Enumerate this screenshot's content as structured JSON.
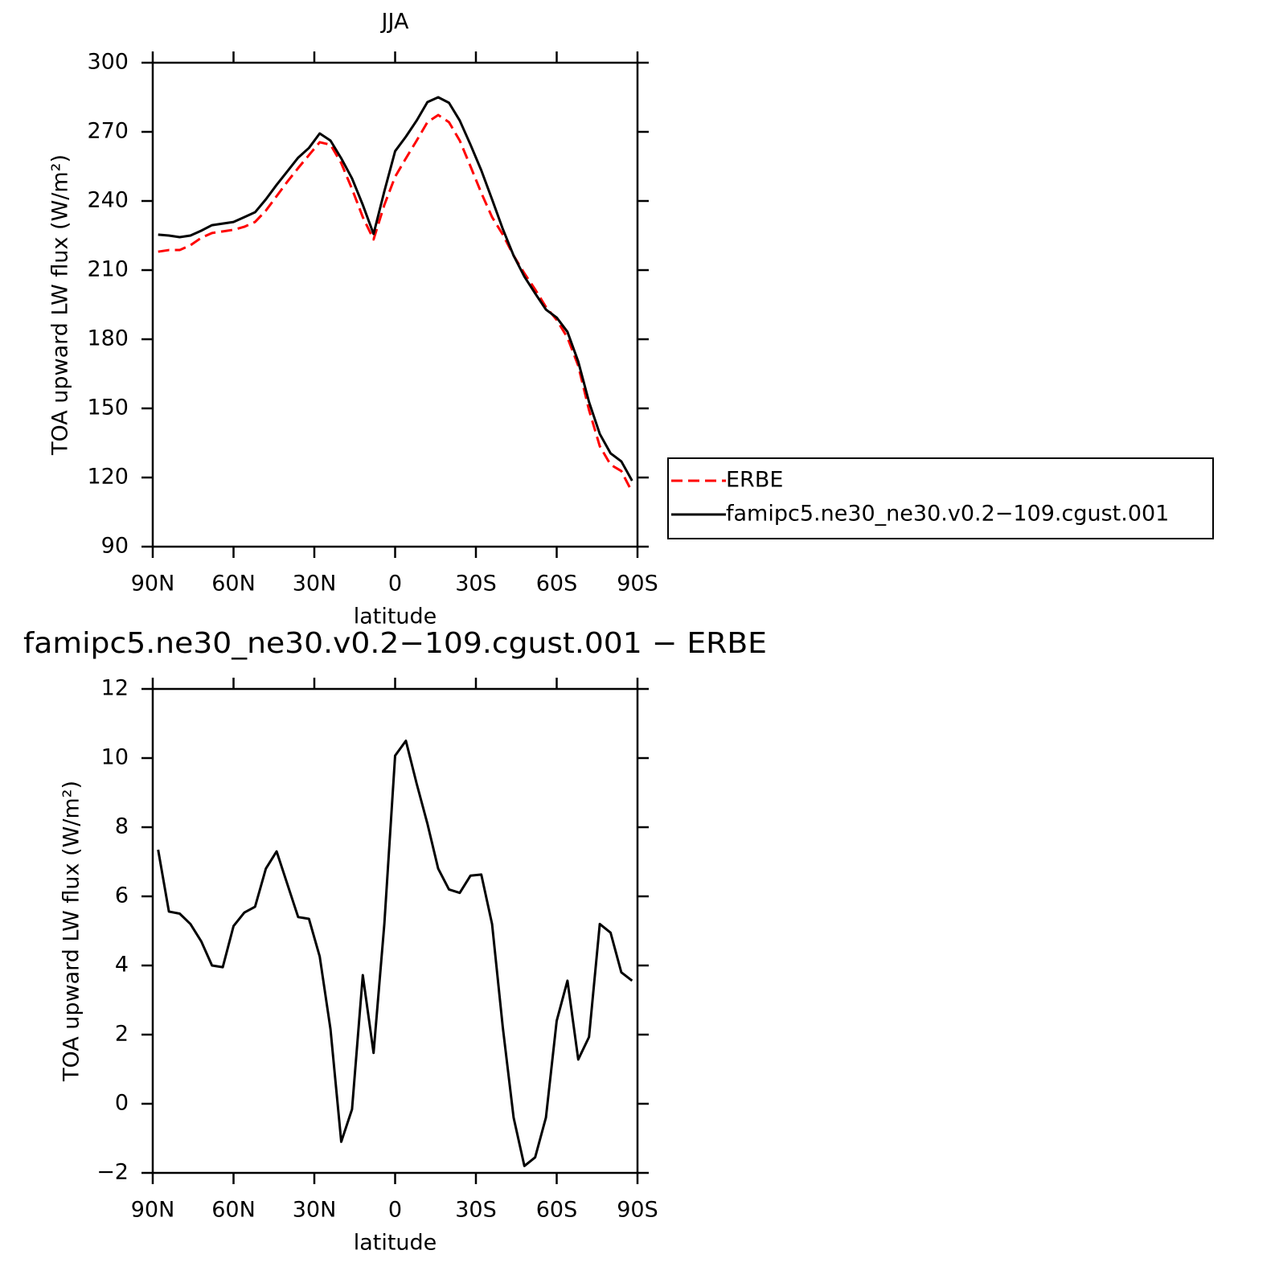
{
  "chart_data": [
    {
      "type": "line",
      "title": "JJA",
      "xlabel": "latitude",
      "ylabel": "TOA upward LW flux (W/m²)",
      "x": [
        88,
        84,
        80,
        76,
        72,
        68,
        64,
        60,
        56,
        52,
        48,
        44,
        40,
        36,
        32,
        28,
        24,
        20,
        16,
        12,
        8,
        4,
        0,
        -4,
        -8,
        -12,
        -16,
        -20,
        -24,
        -28,
        -32,
        -36,
        -40,
        -44,
        -48,
        -52,
        -56,
        -60,
        -64,
        -68,
        -72,
        -76,
        -80,
        -84,
        -88
      ],
      "xlim": [
        90,
        -90
      ],
      "xticks": [
        {
          "value": 90,
          "label": "90N"
        },
        {
          "value": 60,
          "label": "60N"
        },
        {
          "value": 30,
          "label": "30N"
        },
        0,
        {
          "value": -30,
          "label": "30S"
        },
        {
          "value": -60,
          "label": "60S"
        },
        {
          "value": -90,
          "label": "90S"
        }
      ],
      "ylim": [
        90,
        300
      ],
      "yticks": [
        90,
        120,
        150,
        180,
        210,
        240,
        270,
        300
      ],
      "legend": "right",
      "series": [
        {
          "name": "ERBE",
          "color": "#ff0000",
          "style": "dashed",
          "values": [
            218.0,
            218.7,
            218.7,
            220.8,
            224.0,
            226.1,
            226.8,
            227.5,
            228.8,
            230.9,
            235.8,
            242.1,
            248.4,
            254.3,
            259.9,
            265.5,
            264.4,
            256.4,
            245.2,
            233.0,
            223.3,
            238.3,
            250.5,
            258.5,
            266.2,
            274.2,
            277.3,
            274.2,
            266.2,
            255.0,
            243.5,
            233.0,
            225.4,
            216.3,
            208.6,
            201.6,
            194.0,
            188.4,
            180.7,
            168.5,
            149.3,
            133.6,
            125.6,
            122.8,
            113.7
          ]
        },
        {
          "name": "famipc5.ne30_ne30.v0.2−109.cgust.001",
          "color": "#000000",
          "style": "solid",
          "values": [
            225.4,
            225.0,
            224.3,
            225.0,
            227.1,
            229.5,
            230.2,
            230.9,
            233.0,
            235.1,
            240.7,
            247.0,
            252.9,
            258.8,
            263.0,
            269.3,
            266.2,
            258.5,
            249.8,
            238.3,
            225.7,
            244.2,
            261.6,
            267.9,
            274.9,
            282.9,
            285.0,
            282.6,
            274.9,
            264.4,
            253.3,
            240.7,
            227.8,
            216.3,
            207.2,
            199.9,
            192.9,
            189.4,
            183.2,
            170.3,
            152.8,
            138.9,
            130.5,
            127.0,
            118.6
          ]
        }
      ]
    },
    {
      "type": "line",
      "title": "famipc5.ne30_ne30.v0.2−109.cgust.001 − ERBE",
      "xlabel": "latitude",
      "ylabel": "TOA upward LW flux (W/m²)",
      "x": [
        88,
        84,
        80,
        76,
        72,
        68,
        64,
        60,
        56,
        52,
        48,
        44,
        40,
        36,
        32,
        28,
        24,
        20,
        16,
        12,
        8,
        4,
        0,
        -4,
        -8,
        -12,
        -16,
        -20,
        -24,
        -28,
        -32,
        -36,
        -40,
        -44,
        -48,
        -52,
        -56,
        -60,
        -64,
        -68,
        -72,
        -76,
        -80,
        -84,
        -88
      ],
      "xlim": [
        90,
        -90
      ],
      "xticks": [
        {
          "value": 90,
          "label": "90N"
        },
        {
          "value": 60,
          "label": "60N"
        },
        {
          "value": 30,
          "label": "30N"
        },
        0,
        {
          "value": -30,
          "label": "30S"
        },
        {
          "value": -60,
          "label": "60S"
        },
        {
          "value": -90,
          "label": "90S"
        }
      ],
      "ylim": [
        -2,
        12
      ],
      "yticks": [
        {
          "value": -2,
          "label": "−2"
        },
        0,
        2,
        4,
        6,
        8,
        10,
        12
      ],
      "color": "#000000",
      "values": [
        7.35,
        5.56,
        5.5,
        5.2,
        4.7,
        4.0,
        3.95,
        5.14,
        5.53,
        5.7,
        6.8,
        7.3,
        6.35,
        5.4,
        5.35,
        4.26,
        2.16,
        -1.1,
        -0.16,
        3.72,
        1.47,
        5.2,
        10.07,
        10.5,
        9.26,
        8.1,
        6.8,
        6.2,
        6.1,
        6.6,
        6.63,
        5.2,
        2.2,
        -0.4,
        -1.8,
        -1.55,
        -0.4,
        2.4,
        3.56,
        1.28,
        1.93,
        5.2,
        4.95,
        3.8,
        3.56
      ]
    }
  ]
}
